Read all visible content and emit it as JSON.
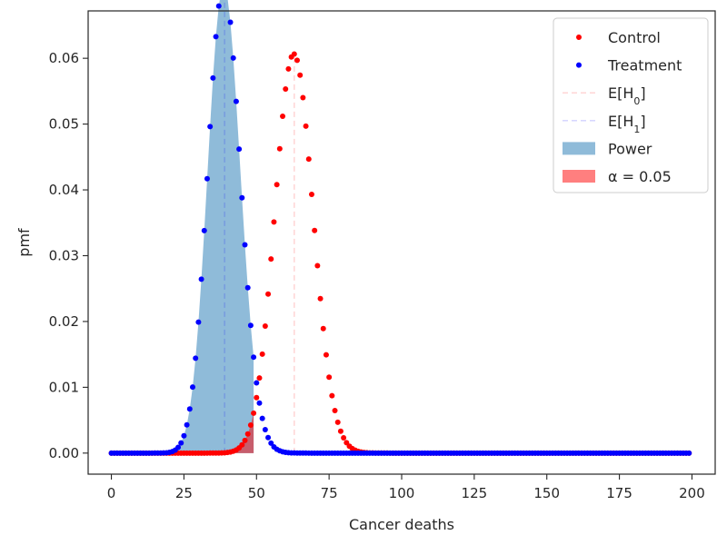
{
  "chart_data": {
    "type": "scatter",
    "xlabel": "Cancer deaths",
    "ylabel": "pmf",
    "xlim": [
      -8,
      208
    ],
    "ylim": [
      -0.0032,
      0.0672
    ],
    "xticks": [
      0,
      25,
      50,
      75,
      100,
      125,
      150,
      175,
      200
    ],
    "yticks": [
      0.0,
      0.01,
      0.02,
      0.03,
      0.04,
      0.05,
      0.06
    ],
    "ytick_labels": [
      "0.00",
      "0.01",
      "0.02",
      "0.03",
      "0.04",
      "0.05",
      "0.06"
    ],
    "grid": false,
    "legend_position": "top-right",
    "legend": [
      {
        "label": "Control",
        "kind": "marker",
        "color": "#ff0000"
      },
      {
        "label": "Treatment",
        "kind": "marker",
        "color": "#0000ff"
      },
      {
        "label_html": "E[H<tspan baseline-shift='sub' font-size='11'>0</tspan>]",
        "label": "E[H0]",
        "kind": "dashed-line",
        "color": "#ff0000"
      },
      {
        "label_html": "E[H<tspan baseline-shift='sub' font-size='11'>1</tspan>]",
        "label": "E[H1]",
        "kind": "dashed-line",
        "color": "#0000ff"
      },
      {
        "label": "Power",
        "kind": "patch",
        "color": "#1f77b4"
      },
      {
        "label": "α = 0.05",
        "kind": "patch",
        "color": "#ff0000"
      }
    ],
    "series": [
      {
        "name": "Control",
        "color": "#ff0000",
        "distribution": "binomial",
        "n": 200,
        "p": 0.315,
        "x_range": [
          0,
          199
        ]
      },
      {
        "name": "Treatment",
        "color": "#0000ff",
        "distribution": "binomial",
        "n": 200,
        "p": 0.195,
        "x_range": [
          0,
          199
        ]
      }
    ],
    "expected_lines": [
      {
        "name": "E[H0]",
        "x": 63,
        "color": "#ff0000"
      },
      {
        "name": "E[H1]",
        "x": 39,
        "color": "#0000ff"
      }
    ],
    "shaded_regions": [
      {
        "name": "Power",
        "under_series": "Treatment",
        "x_range": [
          0,
          49
        ],
        "color": "#1f77b4",
        "opacity": 0.5
      },
      {
        "name": "α = 0.05",
        "under_series": "Control",
        "x_range": [
          0,
          49
        ],
        "color": "#ff0000",
        "opacity": 0.5
      }
    ]
  }
}
